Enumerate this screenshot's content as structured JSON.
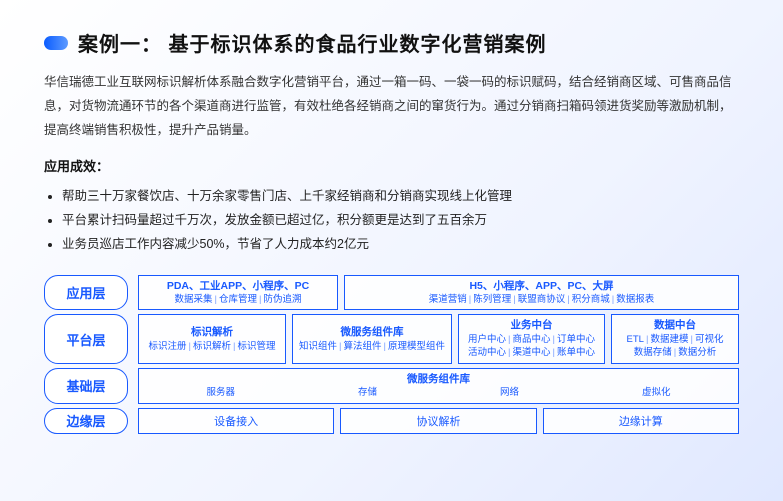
{
  "title": "案例一： 基于标识体系的食品行业数字化营销案例",
  "description": "华信瑞德工业互联网标识解析体系融合数字化营销平台，通过一箱一码、一袋一码的标识赋码，结合经销商区域、可售商品信息，对货物流通环节的各个渠道商进行监管，有效杜绝各经销商之间的窜货行为。通过分销商扫箱码领进货奖励等激励机制，提高终端销售积极性，提升产品销量。",
  "effects_label": "应用成效：",
  "effects": [
    "帮助三十万家餐饮店、十万余家零售门店、上千家经销商和分销商实现线上化管理",
    "平台累计扫码量超过千万次，发放金额已超过亿，积分额更是达到了五百余万",
    "业务员巡店工作内容减少50%，节省了人力成本约2亿元"
  ],
  "layers": {
    "app": {
      "name": "应用层",
      "left": {
        "title": "PDA、工业APP、小程序、PC",
        "tags": [
          "数据采集",
          "仓库管理",
          "防伪追溯"
        ]
      },
      "right": {
        "title": "H5、小程序、APP、PC、大屏",
        "tags": [
          "渠道营销",
          "陈列管理",
          "联盟商协议",
          "积分商城",
          "数据报表"
        ]
      }
    },
    "platform": {
      "name": "平台层",
      "g1": {
        "title": "标识解析",
        "tags": [
          "标识注册",
          "标识解析",
          "标识管理"
        ]
      },
      "g2": {
        "title": "微服务组件库",
        "tags": [
          "知识组件",
          "算法组件",
          "原理模型组件"
        ]
      },
      "g3": {
        "title": "业务中台",
        "tags_top": [
          "用户中心",
          "商品中心",
          "订单中心"
        ],
        "tags_bot": [
          "活动中心",
          "渠道中心",
          "账单中心"
        ]
      },
      "g4": {
        "title": "数据中台",
        "tags_top": [
          "ETL",
          "数据建模",
          "可视化"
        ],
        "tags_bot": [
          "数据存储",
          "数据分析"
        ]
      }
    },
    "base": {
      "name": "基础层",
      "title": "微服务组件库",
      "tags": [
        "服务器",
        "存储",
        "网络",
        "虚拟化"
      ]
    },
    "edge": {
      "name": "边缘层",
      "cells": [
        "设备接入",
        "协议解析",
        "边缘计算"
      ]
    }
  }
}
